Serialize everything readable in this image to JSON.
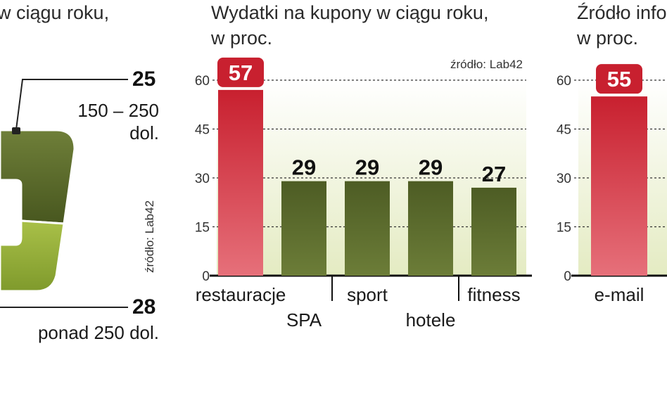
{
  "left_panel": {
    "title_fragment": "w ciągu roku,",
    "top_value": "25",
    "top_label_1": "150 – 250",
    "top_label_2": "dol.",
    "bottom_value": "28",
    "bottom_label": "ponad 250 dol.",
    "source": "źródło: Lab42"
  },
  "chart_data": [
    {
      "type": "bar",
      "title": "Wydatki na kupony w ciągu roku,",
      "subtitle": "w proc.",
      "source": "źródło: Lab42",
      "categories": [
        "restauracje",
        "SPA",
        "sport",
        "hotele",
        "fitness"
      ],
      "values": [
        57,
        29,
        29,
        29,
        27
      ],
      "value_labels": [
        "57",
        "29",
        "29",
        "29",
        "27"
      ],
      "ylim": [
        0,
        60
      ],
      "yticks": [
        "0",
        "15",
        "30",
        "45",
        "60"
      ],
      "highlight_color": "#c8202f",
      "bar_color": "#55652a",
      "grid": true
    },
    {
      "type": "bar",
      "title": "Źródło info",
      "subtitle": "w proc.",
      "categories": [
        "e-mail"
      ],
      "values": [
        55
      ],
      "value_labels": [
        "55"
      ],
      "ylim": [
        0,
        60
      ],
      "yticks": [
        "0",
        "15",
        "30",
        "45",
        "60"
      ],
      "highlight_color": "#c8202f",
      "grid": true
    }
  ]
}
